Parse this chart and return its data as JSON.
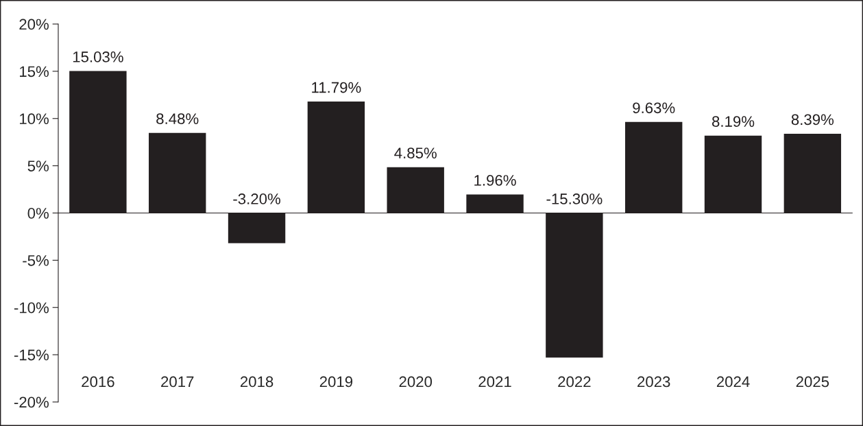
{
  "chart_data": {
    "type": "bar",
    "categories": [
      "2016",
      "2017",
      "2018",
      "2019",
      "2020",
      "2021",
      "2022",
      "2023",
      "2024",
      "2025"
    ],
    "values": [
      15.03,
      8.48,
      -3.2,
      11.79,
      4.85,
      1.96,
      -15.3,
      9.63,
      8.19,
      8.39
    ],
    "value_labels": [
      "15.03%",
      "8.48%",
      "-3.20%",
      "11.79%",
      "4.85%",
      "1.96%",
      "-15.30%",
      "9.63%",
      "8.19%",
      "8.39%"
    ],
    "color": "#231f20",
    "ylim": [
      -20,
      20
    ],
    "yticks": [
      {
        "value": -20,
        "label": "-20%"
      },
      {
        "value": -15,
        "label": "-15%"
      },
      {
        "value": -10,
        "label": "-10%"
      },
      {
        "value": -5,
        "label": "-5%"
      },
      {
        "value": 0,
        "label": "0%"
      },
      {
        "value": 5,
        "label": "5%"
      },
      {
        "value": 10,
        "label": "10%"
      },
      {
        "value": 15,
        "label": "15%"
      },
      {
        "value": 20,
        "label": "20%"
      }
    ],
    "legend": false
  }
}
